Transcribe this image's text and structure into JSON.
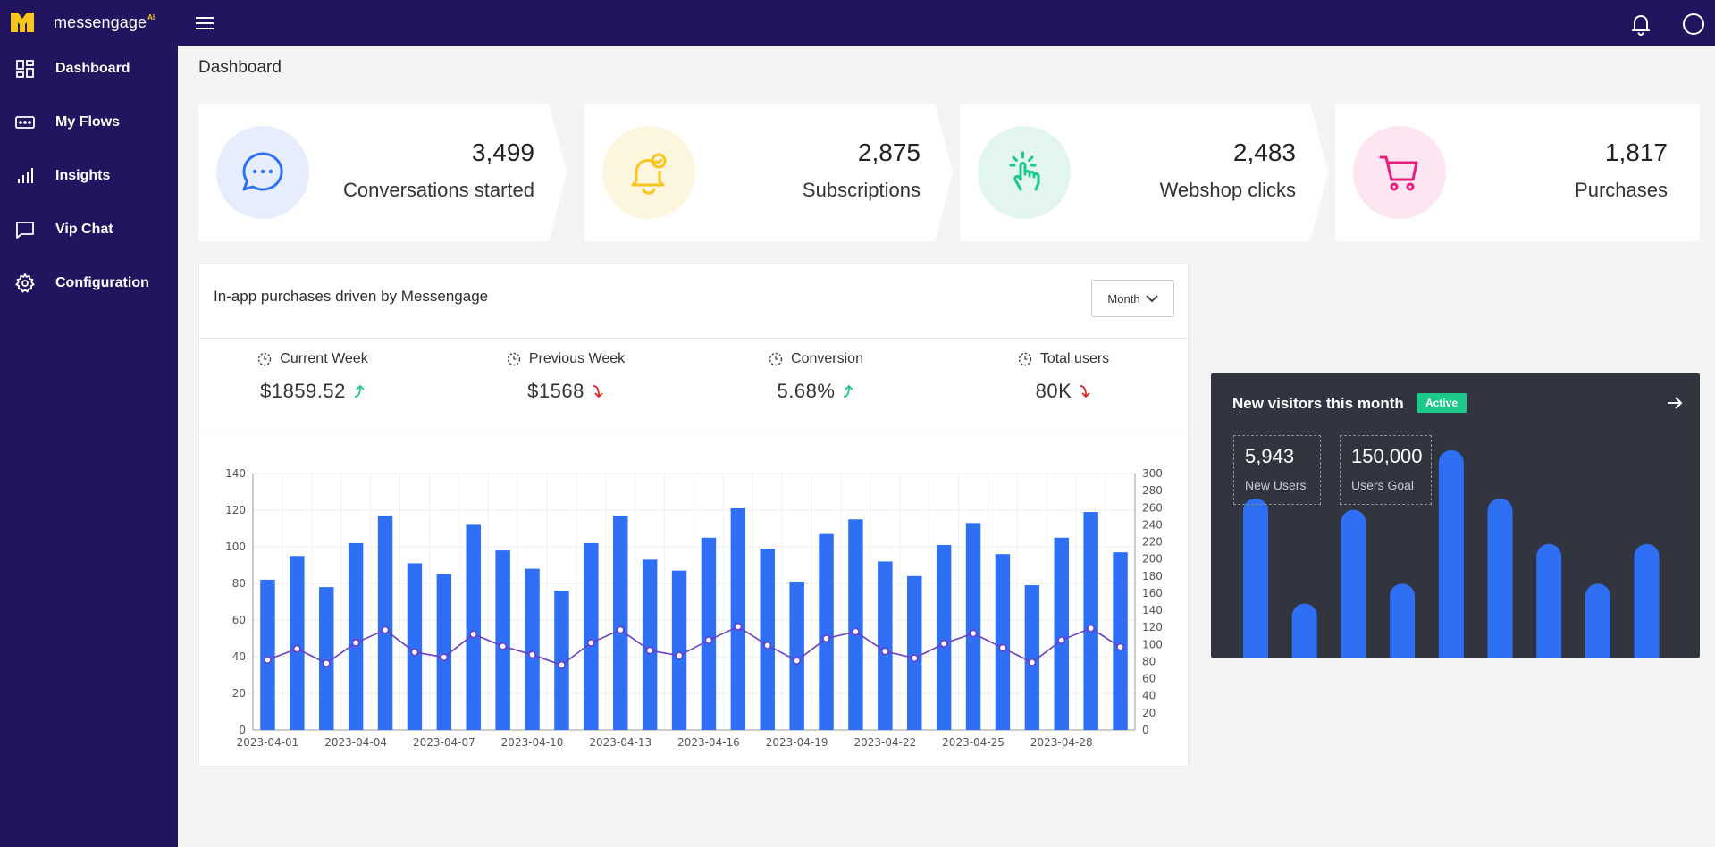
{
  "app": {
    "name": "messengage",
    "name_suffix": "AI"
  },
  "colors": {
    "topbar": "#22145e",
    "sidebar": "#22145e",
    "brand_accent": "#f8c51c",
    "bar": "#2f6ff4",
    "line": "#6a3fc2",
    "up": "#1cc88a",
    "down": "#e02424",
    "visitors_bg": "#30353f",
    "badge": "#1cc88a"
  },
  "topbar": {
    "menu_icon": "hamburger-icon",
    "notification_icon": "bell-icon",
    "profile_icon": "user-circle-icon"
  },
  "sidebar": {
    "items": [
      {
        "label": "Dashboard",
        "icon": "dashboard-grid-icon"
      },
      {
        "label": "My Flows",
        "icon": "flows-icon"
      },
      {
        "label": "Insights",
        "icon": "insights-bars-icon"
      },
      {
        "label": "Vip Chat",
        "icon": "chat-bubble-icon"
      },
      {
        "label": "Configuration",
        "icon": "gear-icon"
      }
    ]
  },
  "page": {
    "title": "Dashboard"
  },
  "stats": [
    {
      "value": "3,499",
      "label": "Conversations started",
      "icon": "chat-dots-icon",
      "bg": "#e6edfd",
      "color": "#2f6ff4"
    },
    {
      "value": "2,875",
      "label": "Subscriptions",
      "icon": "bell-check-icon",
      "bg": "#fdf6de",
      "color": "#f8c51c"
    },
    {
      "value": "2,483",
      "label": "Webshop clicks",
      "icon": "pointer-click-icon",
      "bg": "#e2f5ee",
      "color": "#1cc88a"
    },
    {
      "value": "1,817",
      "label": "Purchases",
      "icon": "cart-icon",
      "bg": "#fde6f1",
      "color": "#e81c7c"
    }
  ],
  "purchases_card": {
    "title": "In-app purchases driven by Messengage",
    "period_select": "Month",
    "kpis": [
      {
        "label": "Current Week",
        "value": "$1859.52",
        "trend": "up"
      },
      {
        "label": "Previous Week",
        "value": "$1568",
        "trend": "down"
      },
      {
        "label": "Conversion",
        "value": "5.68%",
        "trend": "up"
      },
      {
        "label": "Total users",
        "value": "80K",
        "trend": "down"
      }
    ]
  },
  "chart_data": {
    "type": "bar",
    "title": "",
    "xlabel": "",
    "ylabel": "",
    "x": [
      "2023-04-01",
      "2023-04-02",
      "2023-04-03",
      "2023-04-04",
      "2023-04-05",
      "2023-04-06",
      "2023-04-07",
      "2023-04-08",
      "2023-04-09",
      "2023-04-10",
      "2023-04-11",
      "2023-04-12",
      "2023-04-13",
      "2023-04-14",
      "2023-04-15",
      "2023-04-16",
      "2023-04-17",
      "2023-04-18",
      "2023-04-19",
      "2023-04-20",
      "2023-04-21",
      "2023-04-22",
      "2023-04-23",
      "2023-04-24",
      "2023-04-25",
      "2023-04-26",
      "2023-04-27",
      "2023-04-28",
      "2023-04-29",
      "2023-04-30"
    ],
    "x_tick_labels": [
      "2023-04-01",
      "2023-04-04",
      "2023-04-07",
      "2023-04-10",
      "2023-04-13",
      "2023-04-16",
      "2023-04-19",
      "2023-04-22",
      "2023-04-25",
      "2023-04-28"
    ],
    "series": [
      {
        "type": "bar",
        "axis": "left",
        "values": [
          82,
          95,
          78,
          102,
          117,
          91,
          85,
          112,
          98,
          88,
          76,
          102,
          117,
          93,
          87,
          105,
          121,
          99,
          81,
          107,
          115,
          92,
          84,
          101,
          113,
          96,
          79,
          105,
          119,
          97
        ]
      },
      {
        "type": "line",
        "axis": "right",
        "values": [
          82,
          95,
          78,
          102,
          117,
          91,
          85,
          112,
          98,
          88,
          76,
          102,
          117,
          93,
          87,
          105,
          121,
          99,
          81,
          107,
          115,
          92,
          84,
          101,
          113,
          96,
          79,
          105,
          119,
          97
        ]
      }
    ],
    "ylim": [
      0,
      140
    ],
    "y_ticks": [
      0,
      20,
      40,
      60,
      80,
      100,
      120,
      140
    ],
    "y2lim": [
      0,
      300
    ],
    "y2_ticks": [
      0,
      20,
      40,
      60,
      80,
      100,
      120,
      140,
      160,
      180,
      200,
      220,
      240,
      260,
      280,
      300
    ],
    "grid": true
  },
  "visitors_card": {
    "title": "New visitors this month",
    "badge": "Active",
    "arrow_icon": "arrow-right-icon",
    "new_users": {
      "value": "5,943",
      "label": "New Users"
    },
    "users_goal": {
      "value": "150,000",
      "label": "Users Goal"
    },
    "bars": [
      0.56,
      0.19,
      0.52,
      0.26,
      0.73,
      0.56,
      0.4,
      0.26,
      0.4
    ]
  }
}
